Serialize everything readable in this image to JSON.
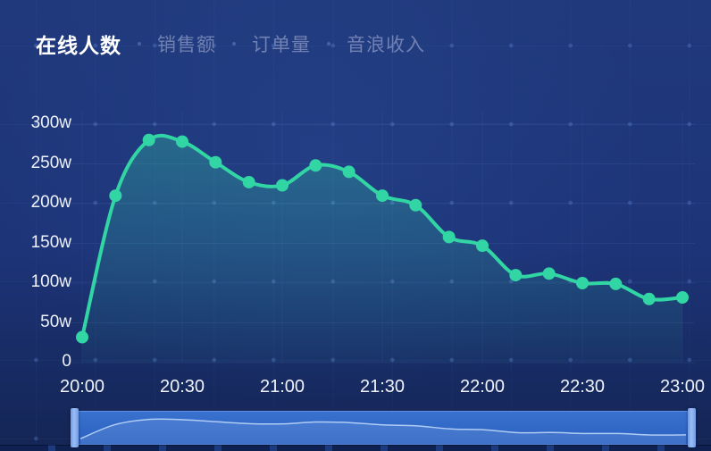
{
  "tabs": {
    "items": [
      {
        "label": "在线人数",
        "active": true
      },
      {
        "label": "销售额",
        "active": false
      },
      {
        "label": "订单量",
        "active": false
      },
      {
        "label": "音浪收入",
        "active": false
      }
    ]
  },
  "chart_data": {
    "type": "line",
    "title": "在线人数",
    "unit": "w",
    "x": [
      "20:00",
      "20:10",
      "20:20",
      "20:30",
      "20:40",
      "20:50",
      "21:00",
      "21:10",
      "21:20",
      "21:30",
      "21:40",
      "21:50",
      "22:00",
      "22:10",
      "22:20",
      "22:30",
      "22:40",
      "22:50",
      "23:00"
    ],
    "values": [
      32,
      210,
      280,
      278,
      252,
      227,
      223,
      248,
      240,
      210,
      198,
      158,
      147,
      110,
      112,
      100,
      99,
      80,
      82
    ],
    "yticks": [
      "0",
      "50w",
      "100w",
      "150w",
      "200w",
      "250w",
      "300w"
    ],
    "ytick_values": [
      0,
      50,
      100,
      150,
      200,
      250,
      300
    ],
    "xticks": [
      "20:00",
      "20:30",
      "21:00",
      "21:30",
      "22:00",
      "22:30",
      "23:00"
    ],
    "ylim": [
      0,
      300
    ],
    "grid": true,
    "smooth": true,
    "legend": "none",
    "line_color": "#32d5a4",
    "area_color_top": "rgba(53,214,166,0.30)",
    "area_color_bottom": "rgba(53,214,166,0.04)"
  },
  "datazoom": {
    "line_color": "rgba(195,220,252,0.85)",
    "fill_color": "rgba(160,195,245,0.18)"
  },
  "colors": {
    "background": "#1d3478",
    "tab_active": "#ffffff",
    "tab_inactive": "#7181b2",
    "axis_text": "#eef2fa"
  }
}
